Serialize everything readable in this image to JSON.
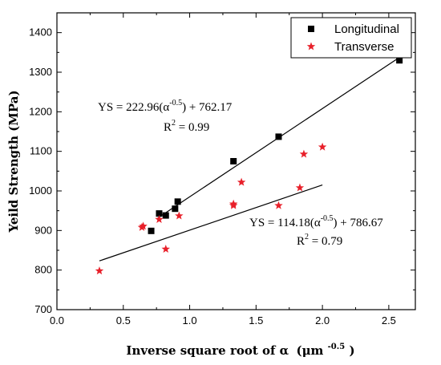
{
  "chart_data": {
    "type": "scatter",
    "title": "",
    "xlabel": "Inverse square root of α",
    "xlabel_unit": "(μm",
    "xlabel_unit_exp": "-0.5",
    "xlabel_unit_close": ")",
    "ylabel": "Yeild Strength (MPa)",
    "xlim": [
      0.0,
      2.7
    ],
    "ylim": [
      700,
      1450
    ],
    "xticks": [
      "0.0",
      "0.5",
      "1.0",
      "1.5",
      "2.0",
      "2.5"
    ],
    "xtick_values": [
      0.0,
      0.5,
      1.0,
      1.5,
      2.0,
      2.5
    ],
    "yticks": [
      "700",
      "800",
      "900",
      "1000",
      "1100",
      "1200",
      "1300",
      "1400"
    ],
    "ytick_values": [
      700,
      800,
      900,
      1000,
      1100,
      1200,
      1300,
      1400
    ],
    "legend_position": "top-right",
    "series": [
      {
        "name": "Longitudinal",
        "marker": "square",
        "color": "#000000",
        "points": [
          [
            0.71,
            899
          ],
          [
            0.77,
            943
          ],
          [
            0.82,
            938
          ],
          [
            0.89,
            955
          ],
          [
            0.91,
            973
          ],
          [
            1.33,
            1075
          ],
          [
            1.67,
            1137
          ],
          [
            2.58,
            1330
          ]
        ],
        "fit": {
          "x_range": [
            0.76,
            2.6
          ],
          "equation_main": "YS = 222.96(α",
          "equation_exp": "-0.5",
          "equation_tail": ") + 762.17",
          "r2_main": "R",
          "r2_exp": "2",
          "r2_tail": " = 0.99"
        }
      },
      {
        "name": "Transverse",
        "marker": "star",
        "color": "#e8202a",
        "points": [
          [
            0.32,
            798
          ],
          [
            0.64,
            908
          ],
          [
            0.65,
            911
          ],
          [
            0.77,
            928
          ],
          [
            0.82,
            853
          ],
          [
            0.92,
            937
          ],
          [
            1.33,
            963
          ],
          [
            1.33,
            967
          ],
          [
            1.39,
            1022
          ],
          [
            1.67,
            963
          ],
          [
            1.83,
            1008
          ],
          [
            1.86,
            1093
          ],
          [
            2.0,
            1111
          ]
        ],
        "fit": {
          "x_range": [
            0.32,
            2.0
          ],
          "equation_main": "YS = 114.18(α",
          "equation_exp": "-0.5",
          "equation_tail": ") + 786.67",
          "r2_main": "R",
          "r2_exp": "2",
          "r2_tail": " = 0.79"
        }
      }
    ]
  }
}
